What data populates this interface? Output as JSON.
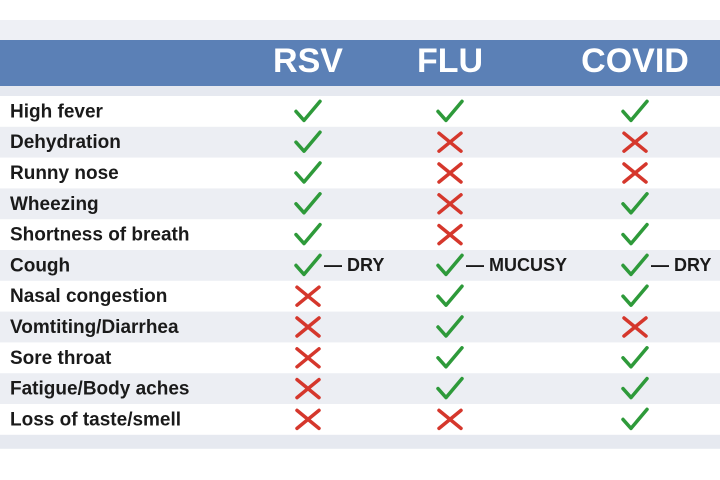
{
  "table": {
    "columns": [
      "RSV",
      "FLU",
      "COVID"
    ],
    "rows": [
      {
        "label": "High fever",
        "cells": [
          true,
          true,
          true
        ]
      },
      {
        "label": "Dehydration",
        "cells": [
          true,
          false,
          false
        ]
      },
      {
        "label": "Runny nose",
        "cells": [
          true,
          false,
          false
        ]
      },
      {
        "label": "Wheezing",
        "cells": [
          true,
          false,
          true
        ]
      },
      {
        "label": "Shortness of breath",
        "cells": [
          true,
          false,
          true
        ]
      },
      {
        "label": "Cough",
        "cells": [
          true,
          true,
          true
        ],
        "notes": [
          "— DRY",
          "— MUCUSY",
          "— DRY"
        ]
      },
      {
        "label": "Nasal congestion",
        "cells": [
          false,
          true,
          true
        ]
      },
      {
        "label": "Vomtiting/Diarrhea",
        "cells": [
          false,
          true,
          false
        ]
      },
      {
        "label": "Sore throat",
        "cells": [
          false,
          true,
          true
        ]
      },
      {
        "label": "Fatigue/Body aches",
        "cells": [
          false,
          true,
          true
        ]
      },
      {
        "label": "Loss of taste/smell",
        "cells": [
          false,
          false,
          true
        ]
      }
    ]
  }
}
